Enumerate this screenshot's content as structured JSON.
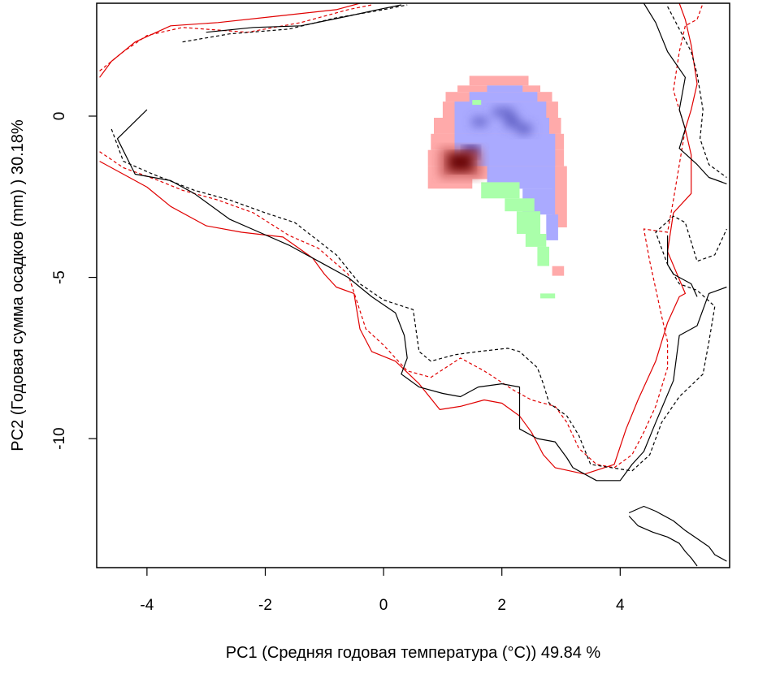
{
  "chart_data": {
    "type": "heatmap",
    "xlabel": "PC1 (Средняя годовая температура (°C)) 49.84 %",
    "ylabel": "PC2 (Годовая сумма осадков  (mm) ) 30.18%",
    "xlim": [
      -4.85,
      5.85
    ],
    "ylim": [
      -14.0,
      3.5
    ],
    "x_ticks": [
      -4,
      -2,
      0,
      2,
      4
    ],
    "y_ticks": [
      0,
      -5,
      -10
    ],
    "axes_drawn": [
      "bottom",
      "left"
    ],
    "box": true,
    "grid": false,
    "colors": {
      "overlap_low": "#aaaaff",
      "overlap_high": "#000088",
      "range_a_only": "#ffaaaa",
      "range_a_core": "#660000",
      "range_b_only": "#aaffaa",
      "contour_red": "#e00000",
      "contour_black": "#000000"
    },
    "cells": {
      "pink": [
        [
          1.45,
          0.95,
          2.45,
          1.25
        ],
        [
          1.25,
          0.75,
          2.65,
          0.95
        ],
        [
          1.05,
          0.45,
          2.85,
          0.75
        ],
        [
          1.0,
          -0.05,
          2.95,
          0.45
        ],
        [
          0.85,
          -0.55,
          3.0,
          -0.05
        ],
        [
          0.8,
          -1.05,
          3.05,
          -0.55
        ],
        [
          0.75,
          -1.55,
          3.05,
          -1.05
        ],
        [
          0.75,
          -1.95,
          3.1,
          -1.55
        ],
        [
          0.75,
          -2.25,
          1.5,
          -1.95
        ],
        [
          2.85,
          -3.45,
          3.1,
          -1.95
        ],
        [
          2.85,
          -4.95,
          3.05,
          -4.65
        ]
      ],
      "blue": [
        [
          1.75,
          0.75,
          2.35,
          0.95
        ],
        [
          1.45,
          0.45,
          2.6,
          0.75
        ],
        [
          1.2,
          -0.05,
          2.75,
          0.45
        ],
        [
          1.2,
          -0.55,
          2.8,
          -0.05
        ],
        [
          1.2,
          -1.55,
          2.9,
          -0.55
        ],
        [
          1.75,
          -2.25,
          2.9,
          -1.55
        ],
        [
          2.35,
          -3.05,
          2.9,
          -2.25
        ],
        [
          2.75,
          -3.85,
          2.95,
          -3.05
        ]
      ],
      "green": [
        [
          1.5,
          0.35,
          1.65,
          0.5
        ],
        [
          1.65,
          -2.55,
          2.3,
          -2.05
        ],
        [
          2.05,
          -2.95,
          2.55,
          -2.55
        ],
        [
          2.25,
          -3.65,
          2.65,
          -2.95
        ],
        [
          2.4,
          -4.05,
          2.75,
          -3.65
        ],
        [
          2.6,
          -4.65,
          2.8,
          -4.05
        ],
        [
          2.65,
          -5.65,
          2.9,
          -5.5
        ]
      ],
      "blue_dark": [
        [
          1.5,
          -0.3,
          1.75,
          -0.05
        ],
        [
          1.85,
          0.0,
          2.2,
          0.25
        ],
        [
          2.05,
          -0.35,
          2.3,
          0.0
        ],
        [
          2.25,
          -0.55,
          2.5,
          -0.25
        ]
      ],
      "navy": [
        [
          1.35,
          -1.3,
          1.6,
          -0.95
        ]
      ],
      "brown_mid": [
        [
          0.95,
          -1.9,
          1.65,
          -1.0
        ]
      ],
      "brown": [
        [
          1.1,
          -1.7,
          1.5,
          -1.15
        ]
      ]
    },
    "series": [
      {
        "color": "#e00000",
        "dash": "solid",
        "points": [
          [
            -4.8,
            1.2
          ],
          [
            -4.6,
            1.7
          ],
          [
            -4.2,
            2.3
          ],
          [
            -3.6,
            2.8
          ],
          [
            -2.8,
            2.9
          ],
          [
            -1.8,
            3.1
          ],
          [
            -0.8,
            3.3
          ],
          [
            -0.4,
            3.5
          ]
        ]
      },
      {
        "color": "#e00000",
        "dash": "dashed",
        "points": [
          [
            -4.8,
            1.4
          ],
          [
            -4.4,
            2.0
          ],
          [
            -4.0,
            2.5
          ],
          [
            -3.4,
            2.75
          ],
          [
            -2.3,
            2.6
          ],
          [
            -1.4,
            2.9
          ],
          [
            -0.6,
            3.3
          ],
          [
            -0.2,
            3.45
          ]
        ]
      },
      {
        "color": "#000000",
        "dash": "solid",
        "points": [
          [
            -3.0,
            2.6
          ],
          [
            -2.2,
            2.75
          ],
          [
            -1.4,
            2.8
          ],
          [
            -0.6,
            3.1
          ],
          [
            -0.1,
            3.3
          ],
          [
            0.3,
            3.45
          ]
        ]
      },
      {
        "color": "#000000",
        "dash": "dashed",
        "points": [
          [
            -3.4,
            2.3
          ],
          [
            -2.6,
            2.55
          ],
          [
            -1.6,
            2.7
          ],
          [
            -0.8,
            3.05
          ],
          [
            0.0,
            3.3
          ],
          [
            0.4,
            3.45
          ]
        ]
      },
      {
        "color": "#e00000",
        "dash": "solid",
        "points": [
          [
            -4.8,
            -1.4
          ],
          [
            -4.4,
            -1.8
          ],
          [
            -4.0,
            -2.2
          ],
          [
            -3.6,
            -2.8
          ],
          [
            -3.0,
            -3.4
          ],
          [
            -2.4,
            -3.6
          ],
          [
            -1.7,
            -3.75
          ],
          [
            -1.2,
            -4.4
          ],
          [
            -1.0,
            -4.9
          ],
          [
            -0.8,
            -5.3
          ],
          [
            -0.5,
            -5.5
          ],
          [
            -0.4,
            -6.6
          ],
          [
            -0.2,
            -7.3
          ],
          [
            0.2,
            -7.6
          ],
          [
            0.6,
            -8.3
          ],
          [
            0.95,
            -9.1
          ],
          [
            1.3,
            -9.0
          ],
          [
            1.7,
            -8.8
          ],
          [
            2.0,
            -8.9
          ],
          [
            2.3,
            -9.3
          ],
          [
            2.5,
            -9.8
          ],
          [
            2.7,
            -10.5
          ],
          [
            2.9,
            -10.9
          ],
          [
            3.4,
            -11.1
          ],
          [
            3.9,
            -10.8
          ],
          [
            4.1,
            -9.7
          ],
          [
            4.3,
            -8.8
          ],
          [
            4.6,
            -7.6
          ],
          [
            4.8,
            -6.4
          ],
          [
            5.0,
            -5.6
          ],
          [
            5.1,
            -5.5
          ],
          [
            4.8,
            -4.2
          ],
          [
            4.9,
            -3.0
          ],
          [
            5.2,
            -2.4
          ],
          [
            5.2,
            -1.2
          ],
          [
            5.1,
            -0.4
          ],
          [
            5.2,
            0.2
          ],
          [
            5.3,
            1.0
          ],
          [
            5.2,
            2.2
          ],
          [
            5.1,
            3.0
          ],
          [
            5.0,
            3.5
          ]
        ]
      },
      {
        "color": "#e00000",
        "dash": "dashed",
        "points": [
          [
            -4.8,
            -1.1
          ],
          [
            -4.4,
            -1.6
          ],
          [
            -3.8,
            -2.0
          ],
          [
            -3.4,
            -2.3
          ],
          [
            -2.8,
            -2.6
          ],
          [
            -2.2,
            -3.0
          ],
          [
            -1.6,
            -3.7
          ],
          [
            -1.1,
            -4.1
          ],
          [
            -0.6,
            -4.9
          ],
          [
            -0.3,
            -6.6
          ],
          [
            0.0,
            -7.1
          ],
          [
            0.4,
            -7.9
          ],
          [
            0.8,
            -8.1
          ],
          [
            1.3,
            -7.5
          ],
          [
            1.7,
            -7.9
          ],
          [
            2.2,
            -8.5
          ],
          [
            2.5,
            -8.8
          ],
          [
            2.9,
            -9.0
          ],
          [
            3.1,
            -9.5
          ],
          [
            3.3,
            -10.3
          ],
          [
            3.6,
            -10.8
          ],
          [
            3.9,
            -10.9
          ],
          [
            4.2,
            -10.5
          ],
          [
            4.4,
            -9.8
          ],
          [
            4.6,
            -9.0
          ],
          [
            4.8,
            -7.8
          ],
          [
            4.8,
            -7.0
          ],
          [
            4.7,
            -6.2
          ],
          [
            4.5,
            -4.5
          ],
          [
            4.4,
            -3.5
          ],
          [
            4.8,
            -3.6
          ],
          [
            4.9,
            -2.6
          ],
          [
            5.0,
            -1.5
          ],
          [
            5.1,
            -0.4
          ],
          [
            4.9,
            0.8
          ],
          [
            5.0,
            2.0
          ],
          [
            5.1,
            2.8
          ],
          [
            5.3,
            3.0
          ],
          [
            5.4,
            3.5
          ]
        ]
      },
      {
        "color": "#000000",
        "dash": "solid",
        "points": [
          [
            -4.0,
            0.2
          ],
          [
            -4.5,
            -0.7
          ],
          [
            -4.2,
            -1.8
          ],
          [
            -3.6,
            -2.0
          ],
          [
            -3.2,
            -2.4
          ],
          [
            -2.6,
            -3.2
          ],
          [
            -2.1,
            -3.6
          ],
          [
            -1.6,
            -4.0
          ],
          [
            -1.0,
            -4.6
          ],
          [
            -0.6,
            -5.0
          ],
          [
            -0.2,
            -5.6
          ],
          [
            0.2,
            -6.1
          ],
          [
            0.35,
            -6.8
          ],
          [
            0.4,
            -7.5
          ],
          [
            0.3,
            -8.0
          ],
          [
            0.6,
            -8.4
          ],
          [
            1.0,
            -8.6
          ],
          [
            1.3,
            -8.7
          ],
          [
            1.6,
            -8.4
          ],
          [
            2.0,
            -8.3
          ],
          [
            2.3,
            -8.4
          ],
          [
            2.3,
            -9.7
          ],
          [
            2.6,
            -10.0
          ],
          [
            2.9,
            -10.1
          ],
          [
            3.1,
            -10.6
          ],
          [
            3.2,
            -10.9
          ],
          [
            3.6,
            -11.3
          ],
          [
            4.0,
            -11.3
          ],
          [
            4.2,
            -10.8
          ],
          [
            4.4,
            -10.4
          ],
          [
            4.6,
            -9.5
          ],
          [
            4.9,
            -8.2
          ],
          [
            5.0,
            -6.8
          ],
          [
            5.3,
            -6.5
          ],
          [
            5.5,
            -5.5
          ],
          [
            5.8,
            -5.3
          ]
        ]
      },
      {
        "color": "#000000",
        "dash": "dashed",
        "points": [
          [
            -4.6,
            -0.4
          ],
          [
            -4.4,
            -1.4
          ],
          [
            -3.9,
            -1.8
          ],
          [
            -3.2,
            -2.3
          ],
          [
            -2.6,
            -2.6
          ],
          [
            -2.0,
            -3.0
          ],
          [
            -1.5,
            -3.3
          ],
          [
            -0.8,
            -4.3
          ],
          [
            -0.4,
            -5.2
          ],
          [
            0.0,
            -5.7
          ],
          [
            0.5,
            -6.0
          ],
          [
            0.6,
            -7.3
          ],
          [
            0.8,
            -7.6
          ],
          [
            1.2,
            -7.4
          ],
          [
            1.6,
            -7.3
          ],
          [
            2.1,
            -7.2
          ],
          [
            2.3,
            -7.3
          ],
          [
            2.6,
            -7.8
          ],
          [
            2.7,
            -8.3
          ],
          [
            2.8,
            -8.9
          ],
          [
            3.1,
            -9.3
          ],
          [
            3.3,
            -9.9
          ],
          [
            3.5,
            -10.8
          ],
          [
            4.2,
            -11.0
          ],
          [
            4.5,
            -10.5
          ],
          [
            4.7,
            -9.5
          ],
          [
            5.0,
            -8.7
          ],
          [
            5.4,
            -8.0
          ],
          [
            5.5,
            -7.0
          ],
          [
            5.6,
            -5.9
          ],
          [
            5.3,
            -5.4
          ],
          [
            5.0,
            -5.2
          ],
          [
            4.8,
            -4.6
          ],
          [
            4.6,
            -3.6
          ],
          [
            4.9,
            -3.1
          ],
          [
            5.1,
            -3.3
          ],
          [
            5.3,
            -4.5
          ],
          [
            5.6,
            -4.3
          ],
          [
            5.8,
            -3.5
          ]
        ]
      },
      {
        "color": "#000000",
        "dash": "solid",
        "points": [
          [
            4.4,
            3.5
          ],
          [
            4.6,
            2.9
          ],
          [
            4.8,
            2.0
          ],
          [
            5.1,
            1.2
          ],
          [
            5.0,
            0.2
          ],
          [
            5.1,
            -0.4
          ],
          [
            5.0,
            -1.0
          ],
          [
            5.3,
            -1.5
          ],
          [
            5.5,
            -1.9
          ],
          [
            5.8,
            -2.1
          ]
        ]
      },
      {
        "color": "#000000",
        "dash": "dashed",
        "points": [
          [
            4.8,
            3.4
          ],
          [
            5.0,
            2.7
          ],
          [
            5.2,
            2.0
          ],
          [
            5.3,
            1.3
          ],
          [
            5.4,
            0.2
          ],
          [
            5.35,
            -0.7
          ],
          [
            5.5,
            -1.5
          ],
          [
            5.8,
            -1.9
          ]
        ]
      },
      {
        "color": "#000000",
        "dash": "solid",
        "points": [
          [
            4.15,
            -12.3
          ],
          [
            4.4,
            -12.1
          ],
          [
            4.6,
            -12.25
          ],
          [
            4.9,
            -12.55
          ],
          [
            5.1,
            -12.85
          ],
          [
            5.3,
            -13.1
          ],
          [
            5.5,
            -13.35
          ],
          [
            5.6,
            -13.6
          ],
          [
            5.8,
            -13.8
          ]
        ]
      },
      {
        "color": "#000000",
        "dash": "solid",
        "points": [
          [
            4.15,
            -12.4
          ],
          [
            4.3,
            -12.7
          ],
          [
            4.55,
            -12.9
          ],
          [
            4.8,
            -13.05
          ],
          [
            5.0,
            -13.25
          ],
          [
            5.1,
            -13.5
          ],
          [
            5.2,
            -13.7
          ],
          [
            5.3,
            -13.95
          ]
        ]
      },
      {
        "color": "#000000",
        "dash": "solid",
        "points": [
          [
            4.8,
            -3.7
          ],
          [
            4.8,
            -4.6
          ],
          [
            4.9,
            -4.9
          ],
          [
            5.0,
            -5.0
          ],
          [
            5.2,
            -5.2
          ],
          [
            5.3,
            -5.6
          ]
        ]
      }
    ]
  }
}
